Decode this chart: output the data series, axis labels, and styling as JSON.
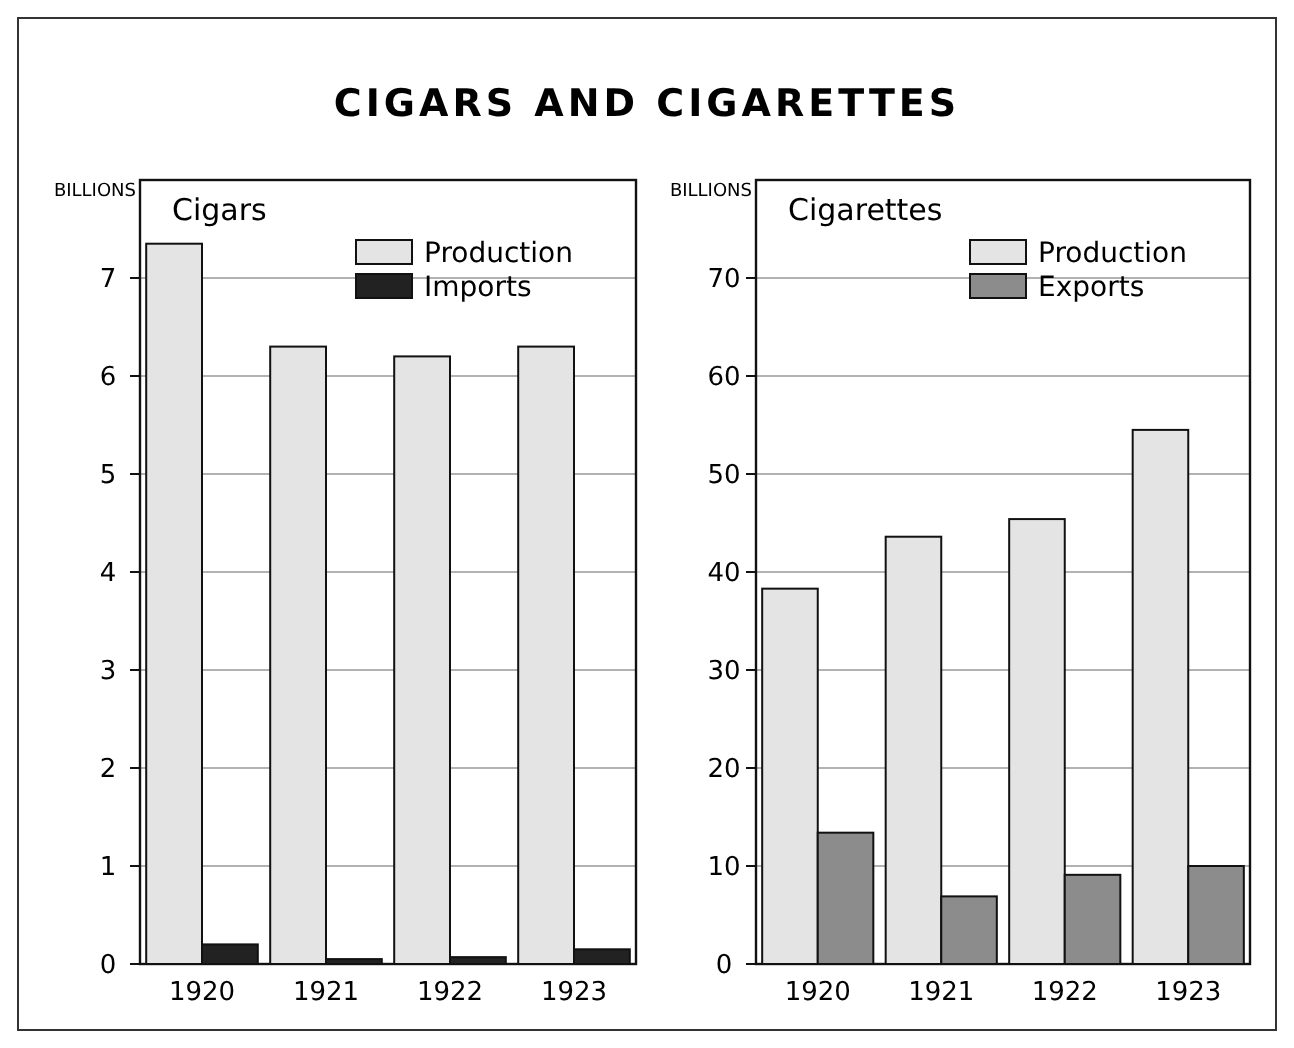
{
  "chart_data": [
    {
      "type": "bar",
      "title": "CIGARS AND CIGARETTES",
      "subtitle": "Cigars",
      "ylabel": "BILLIONS",
      "categories": [
        "1920",
        "1921",
        "1922",
        "1923"
      ],
      "series": [
        {
          "name": "Production",
          "color": "#e4e4e4",
          "values": [
            7.35,
            6.3,
            6.2,
            6.3
          ]
        },
        {
          "name": "Imports",
          "color": "#222222",
          "values": [
            0.2,
            0.05,
            0.07,
            0.15
          ]
        }
      ],
      "ylim": [
        0,
        8
      ],
      "yticks": [
        0,
        1,
        2,
        3,
        4,
        5,
        6,
        7
      ],
      "grid": "y",
      "legend": "top right"
    },
    {
      "type": "bar",
      "subtitle": "Cigarettes",
      "ylabel": "BILLIONS",
      "categories": [
        "1920",
        "1921",
        "1922",
        "1923"
      ],
      "series": [
        {
          "name": "Production",
          "color": "#e4e4e4",
          "values": [
            38.3,
            43.6,
            45.4,
            54.5
          ]
        },
        {
          "name": "Exports",
          "color": "#8c8c8c",
          "values": [
            13.4,
            6.9,
            9.1,
            10.0
          ]
        }
      ],
      "ylim": [
        0,
        80
      ],
      "yticks": [
        0,
        10,
        20,
        30,
        40,
        50,
        60,
        70
      ],
      "grid": "y",
      "legend": "top right"
    }
  ]
}
